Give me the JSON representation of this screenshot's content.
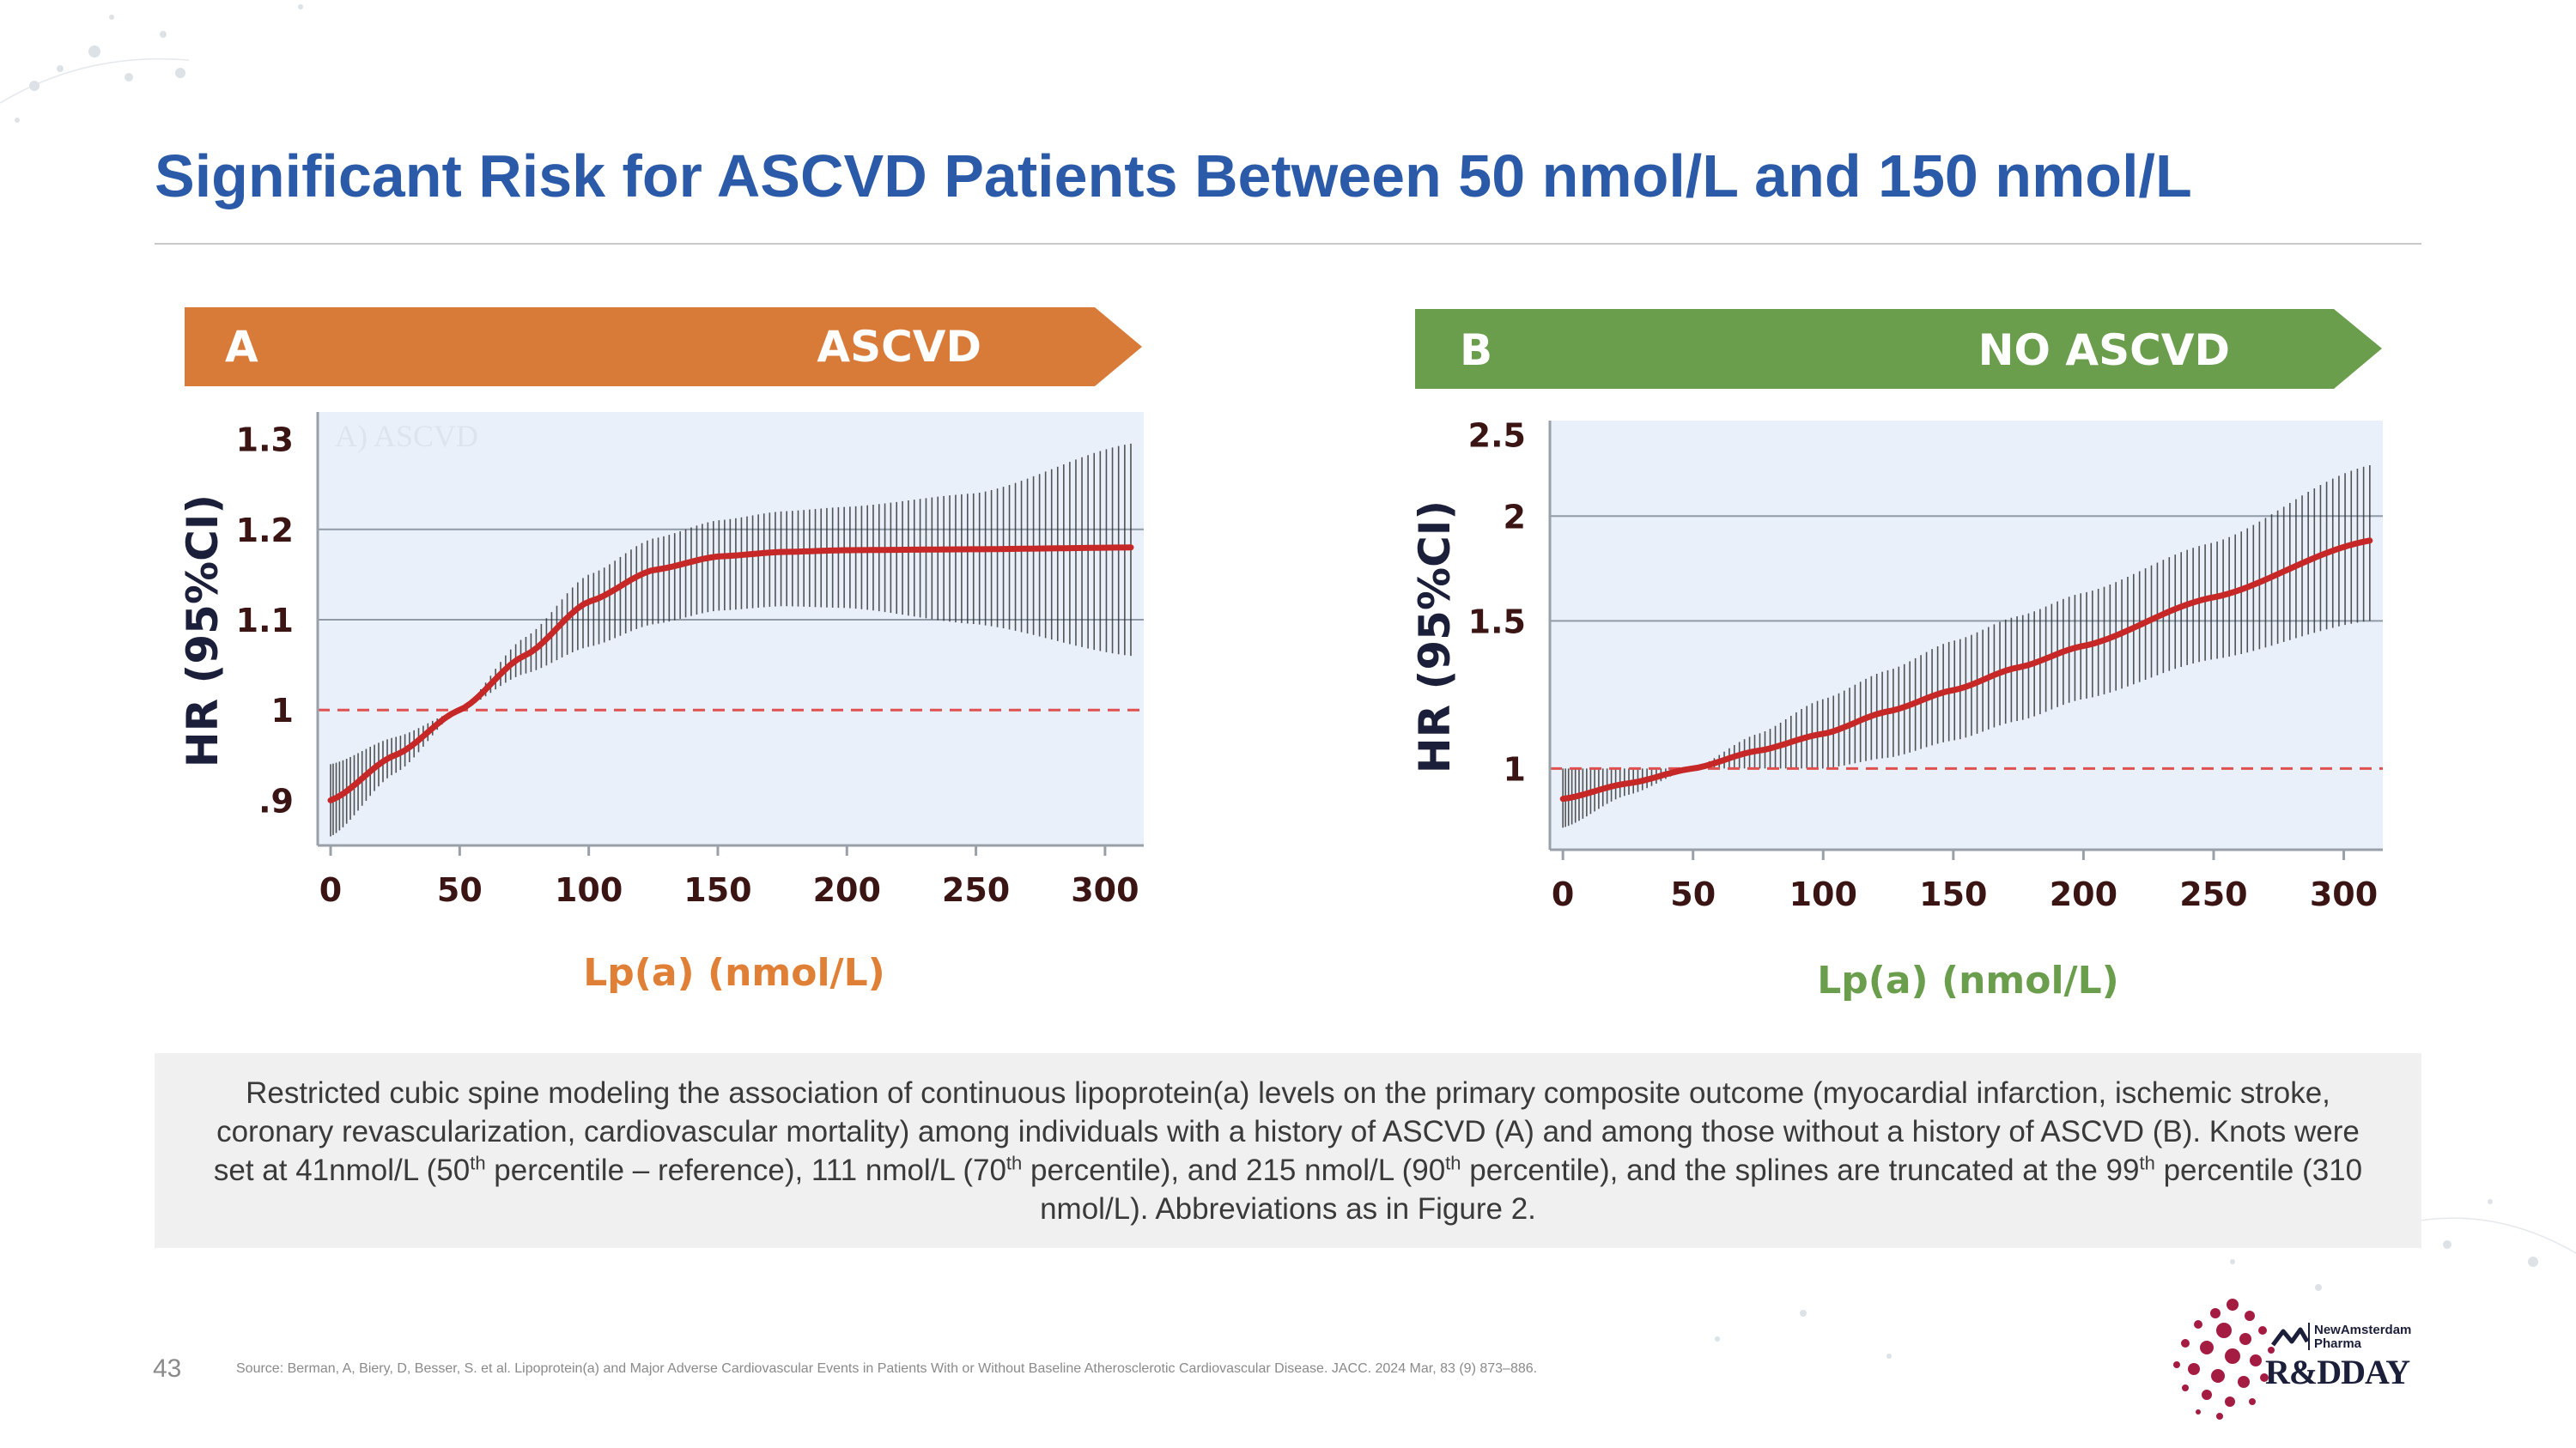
{
  "slide": {
    "title": "Significant Risk for ASCVD Patients Between 50 nmol/L and 150 nmol/L",
    "page_number": "43",
    "source": "Source: Berman, A, Biery, D, Besser, S. et al. Lipoprotein(a) and Major Adverse Cardiovascular Events in Patients With or Without Baseline Atherosclerotic Cardiovascular Disease. JACC. 2024 Mar, 83 (9) 873–886.",
    "caption": {
      "p1": "Restricted cubic spine modeling the association of continuous lipoprotein(a) levels on the primary composite outcome (myocardial infarction, ischemic stroke, coronary revascularization, cardiovascular mortality) among individuals with a history of ASCVD (A) and among those without a history of ASCVD (B). Knots were set at 41nmol/L (50",
      "sup1": "th",
      "p2": " percentile – reference), 111 nmol/L (70",
      "sup2": "th",
      "p3": " percentile), and 215 nmol/L (90",
      "sup3": "th",
      "p4": " percentile), and the splines are truncated at the 99",
      "sup4": "th",
      "p5": " percentile (310 nmol/L). Abbreviations as in Figure 2."
    },
    "brand": {
      "company": "NewAmsterdam Pharma",
      "event": "R&DDAY"
    },
    "colors": {
      "title": "#2a5aa8",
      "ascvd_banner": "#d97b38",
      "no_ascvd_banner": "#6a9e4d",
      "plot_bg": "#eaf0fa",
      "curve": "#c62828",
      "reference": "#e05050",
      "axis_text": "#3b1414",
      "brand": "#a51c43"
    }
  },
  "chart_data": [
    {
      "type": "line",
      "panel_letter": "A",
      "banner": "ASCVD",
      "watermark": "A) ASCVD",
      "xlabel": "Lp(a) (nmol/L)",
      "ylabel": "HR (95%CI)",
      "xlim": [
        -5,
        315
      ],
      "ylim": [
        0.85,
        1.33
      ],
      "x_ticks": [
        0,
        50,
        100,
        150,
        200,
        250,
        300
      ],
      "x_tick_labels": [
        "0",
        "50",
        "100",
        "150",
        "200",
        "250",
        "300"
      ],
      "y_ticks": [
        0.9,
        1.0,
        1.1,
        1.2,
        1.3
      ],
      "y_tick_labels": [
        ".9",
        "1",
        "1.1",
        "1.2",
        "1.3"
      ],
      "gridlines": [
        1.1,
        1.2
      ],
      "reference_line": 1.0,
      "x": [
        0,
        25,
        50,
        75,
        100,
        125,
        150,
        175,
        200,
        250,
        310
      ],
      "hr": [
        0.9,
        0.95,
        1.0,
        1.06,
        1.12,
        1.155,
        1.17,
        1.175,
        1.177,
        1.178,
        1.18
      ],
      "ci_lower": [
        0.86,
        0.93,
        1.0,
        1.04,
        1.07,
        1.095,
        1.11,
        1.115,
        1.113,
        1.095,
        1.06
      ],
      "ci_upper": [
        0.94,
        0.97,
        1.0,
        1.08,
        1.15,
        1.19,
        1.21,
        1.22,
        1.225,
        1.24,
        1.295
      ]
    },
    {
      "type": "line",
      "panel_letter": "B",
      "banner": "NO ASCVD",
      "xlabel": "Lp(a) (nmol/L)",
      "ylabel": "HR (95%CI)",
      "y_scale": "log",
      "xlim": [
        -5,
        315
      ],
      "ylim": [
        0.8,
        2.6
      ],
      "x_ticks": [
        0,
        50,
        100,
        150,
        200,
        250,
        300
      ],
      "x_tick_labels": [
        "0",
        "50",
        "100",
        "150",
        "200",
        "250",
        "300"
      ],
      "y_ticks": [
        1.0,
        1.5,
        2.0,
        2.5
      ],
      "y_tick_labels": [
        "1",
        "1.5",
        "2",
        "2.5"
      ],
      "gridlines": [
        1.5,
        2.0
      ],
      "reference_line": 1.0,
      "x": [
        0,
        25,
        50,
        75,
        100,
        125,
        150,
        175,
        200,
        250,
        310
      ],
      "hr": [
        0.92,
        0.96,
        1.0,
        1.05,
        1.1,
        1.17,
        1.24,
        1.32,
        1.4,
        1.6,
        1.87
      ],
      "ci_lower": [
        0.85,
        0.93,
        1.0,
        1.0,
        1.0,
        1.03,
        1.08,
        1.14,
        1.21,
        1.35,
        1.5
      ],
      "ci_upper": [
        1.0,
        1.0,
        1.0,
        1.1,
        1.21,
        1.31,
        1.42,
        1.52,
        1.62,
        1.86,
        2.3
      ]
    }
  ]
}
